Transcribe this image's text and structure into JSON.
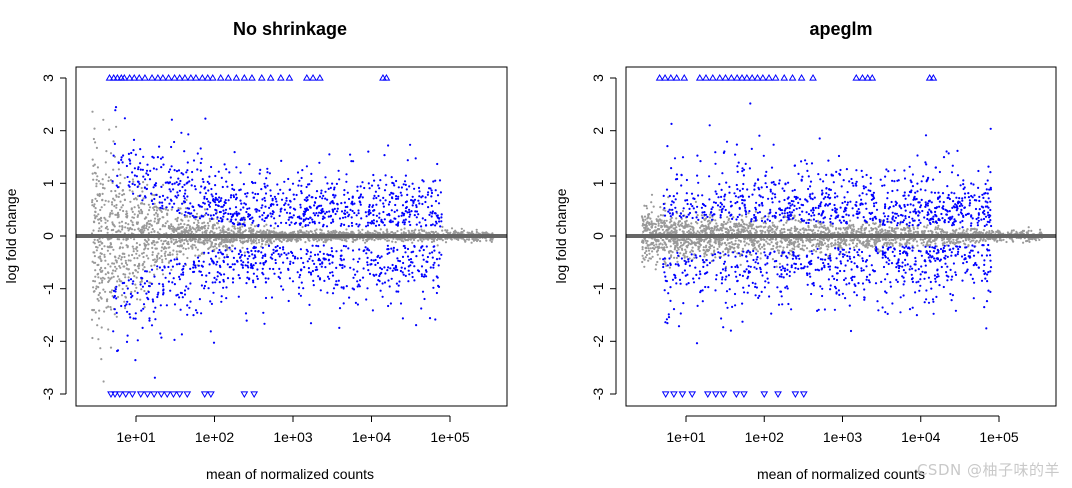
{
  "chart_data": [
    {
      "type": "scatter",
      "title": "No shrinkage",
      "xlabel": "mean of normalized counts",
      "ylabel": "log fold change",
      "xscale": "log10",
      "xlim": [
        0.3,
        400000
      ],
      "ylim": [
        -3.2,
        3.2
      ],
      "x_ticks": [
        "1e+01",
        "1e+02",
        "1e+03",
        "1e+04",
        "1e+05"
      ],
      "x_tick_values": [
        10,
        100,
        1000,
        10000,
        100000
      ],
      "y_ticks": [
        "-3",
        "-2",
        "-1",
        "0",
        "1",
        "2",
        "3"
      ],
      "y_tick_values": [
        -3,
        -2,
        -1,
        0,
        1,
        2,
        3
      ],
      "hline": 0,
      "shrinkage": "none",
      "colors": {
        "not_significant": "#999999",
        "significant": "#0000ff",
        "zero_line": "#666666"
      },
      "out_of_range_marker": "open triangle",
      "capped_up_x": [
        4.6,
        5.2,
        5.8,
        6.5,
        7.1,
        8.3,
        9.5,
        11,
        13,
        16,
        19,
        22,
        26,
        31,
        36,
        42,
        50,
        58,
        70,
        82,
        95,
        120,
        150,
        190,
        240,
        300,
        400,
        520,
        700,
        900,
        1500,
        1800,
        2200,
        14000,
        15500
      ],
      "capped_down_x": [
        4.8,
        5.4,
        6.2,
        7.4,
        9,
        11.5,
        14,
        17,
        21,
        25,
        30,
        36,
        45,
        75,
        90,
        240,
        320
      ]
    },
    {
      "type": "scatter",
      "title": "apeglm",
      "xlabel": "mean of normalized counts",
      "ylabel": "log fold change",
      "xscale": "log10",
      "xlim": [
        0.3,
        400000
      ],
      "ylim": [
        -3.2,
        3.2
      ],
      "x_ticks": [
        "1e+01",
        "1e+02",
        "1e+03",
        "1e+04",
        "1e+05"
      ],
      "x_tick_values": [
        10,
        100,
        1000,
        10000,
        100000
      ],
      "y_ticks": [
        "-3",
        "-2",
        "-1",
        "0",
        "1",
        "2",
        "3"
      ],
      "y_tick_values": [
        -3,
        -2,
        -1,
        0,
        1,
        2,
        3
      ],
      "hline": 0,
      "shrinkage": "apeglm",
      "colors": {
        "not_significant": "#999999",
        "significant": "#0000ff",
        "zero_line": "#666666"
      },
      "out_of_range_marker": "open triangle",
      "capped_up_x": [
        4.6,
        5.4,
        6.4,
        7.6,
        9.5,
        15,
        18,
        22,
        27,
        32,
        38,
        45,
        52,
        60,
        70,
        82,
        96,
        115,
        140,
        180,
        230,
        300,
        420,
        1500,
        1800,
        2100,
        2400,
        13000,
        14500
      ],
      "capped_down_x": [
        5.5,
        7,
        9,
        12,
        19,
        24,
        30,
        44,
        55,
        100,
        150,
        250,
        320
      ]
    }
  ],
  "watermark": "CSDN @柚子味的羊"
}
